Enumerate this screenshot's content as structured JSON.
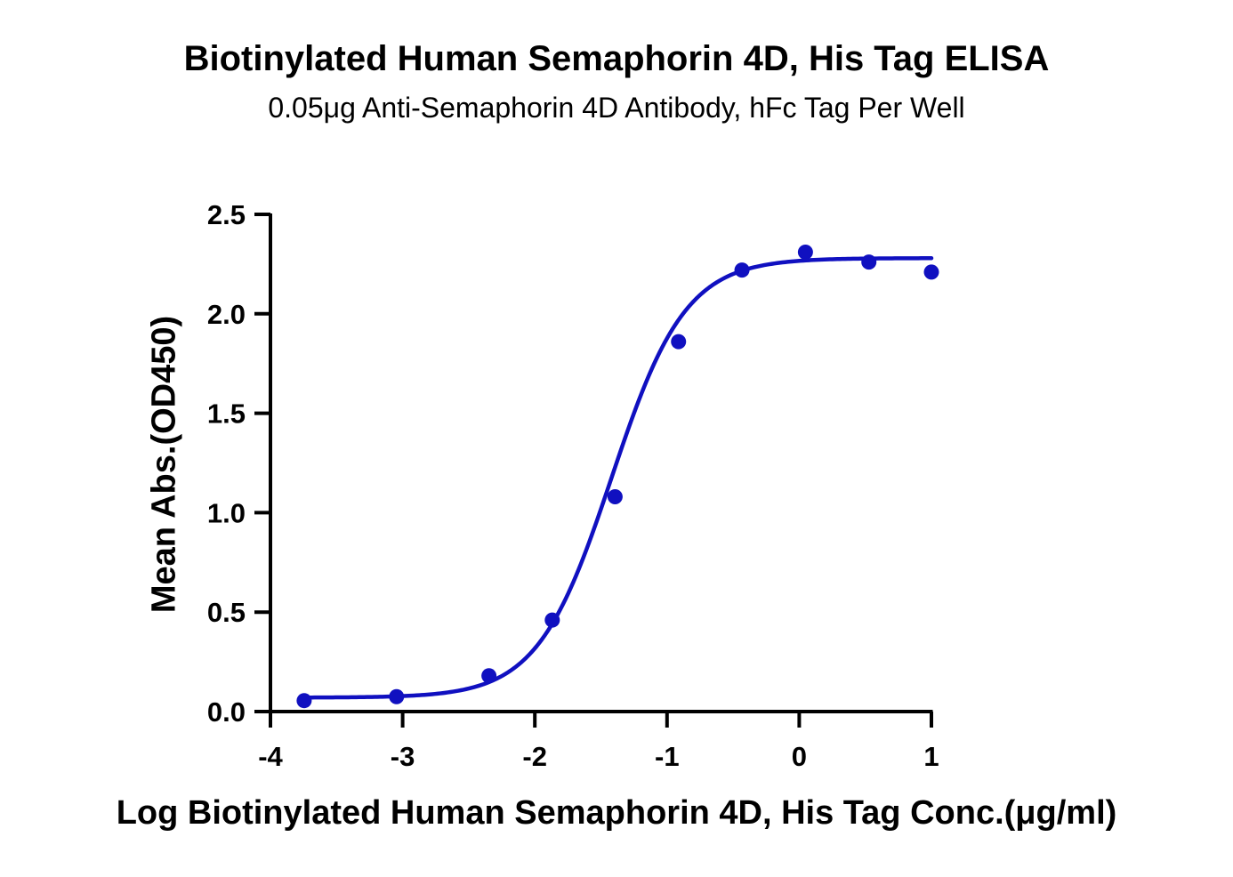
{
  "chart_data": {
    "type": "scatter",
    "title": "Biotinylated Human Semaphorin 4D, His Tag ELISA",
    "subtitle": "0.05μg Anti-Semaphorin 4D Antibody, hFc Tag Per Well",
    "xlabel": "Log Biotinylated Human Semaphorin 4D, His Tag Conc.(μg/ml)",
    "ylabel": "Mean Abs.(OD450)",
    "xlim": [
      -4,
      1
    ],
    "ylim": [
      0,
      2.5
    ],
    "x_ticks": [
      "-4",
      "-3",
      "-2",
      "-1",
      "0",
      "1"
    ],
    "x_tick_values": [
      -4,
      -3,
      -2,
      -1,
      0,
      1
    ],
    "y_ticks": [
      "0.0",
      "0.5",
      "1.0",
      "1.5",
      "2.0",
      "2.5"
    ],
    "y_tick_values": [
      0,
      0.5,
      1.0,
      1.5,
      2.0,
      2.5
    ],
    "series": [
      {
        "x": [
          -3.745,
          -3.046,
          -2.347,
          -1.868,
          -1.393,
          -0.913,
          -0.433,
          0.047,
          0.527,
          1.0
        ],
        "y": [
          0.055,
          0.075,
          0.18,
          0.46,
          1.08,
          1.86,
          2.22,
          2.31,
          2.26,
          2.21
        ]
      }
    ],
    "fit_curve": {
      "model": "4PL",
      "bottom": 0.07,
      "top": 2.28,
      "logEC50": -1.42,
      "hill": 1.55
    },
    "color": "#1010c0",
    "grid": false,
    "legend": "none"
  }
}
